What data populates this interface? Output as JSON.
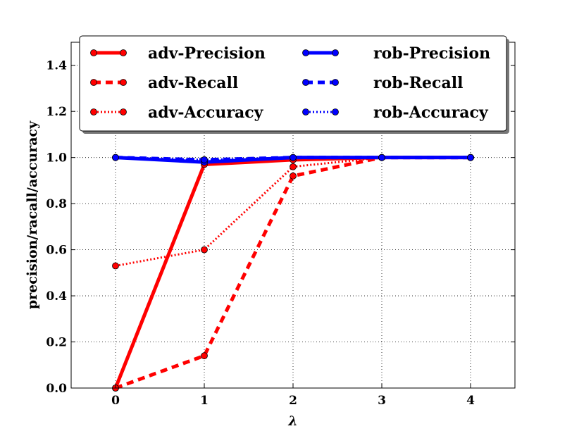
{
  "chart_data": {
    "type": "line",
    "xlabel": "λ",
    "ylabel": "precision/racall/accuracy",
    "x": [
      0,
      1,
      2,
      3,
      4
    ],
    "xticks": [
      "0",
      "1",
      "2",
      "3",
      "4"
    ],
    "xlim": [
      -0.5,
      4.5
    ],
    "yticks": [
      "0.0",
      "0.2",
      "0.4",
      "0.6",
      "0.8",
      "1.0",
      "1.2",
      "1.4"
    ],
    "ylim": [
      0.0,
      1.5
    ],
    "grid": true,
    "legend_position": "top",
    "series": [
      {
        "name": "adv-Precision",
        "color": "#ff0000",
        "style": "solid",
        "values": [
          0.0,
          0.97,
          0.99,
          1.0,
          1.0
        ]
      },
      {
        "name": "adv-Recall",
        "color": "#ff0000",
        "style": "dashed",
        "values": [
          0.0,
          0.14,
          0.92,
          1.0,
          1.0
        ]
      },
      {
        "name": "adv-Accuracy",
        "color": "#ff0000",
        "style": "dotted",
        "values": [
          0.53,
          0.6,
          0.96,
          1.0,
          1.0
        ]
      },
      {
        "name": "rob-Precision",
        "color": "#0000ff",
        "style": "solid",
        "values": [
          1.0,
          0.98,
          1.0,
          1.0,
          1.0
        ]
      },
      {
        "name": "rob-Recall",
        "color": "#0000ff",
        "style": "dashed",
        "values": [
          1.0,
          0.99,
          1.0,
          1.0,
          1.0
        ]
      },
      {
        "name": "rob-Accuracy",
        "color": "#0000ff",
        "style": "dotted",
        "values": [
          1.0,
          0.99,
          1.0,
          1.0,
          1.0
        ]
      }
    ]
  }
}
